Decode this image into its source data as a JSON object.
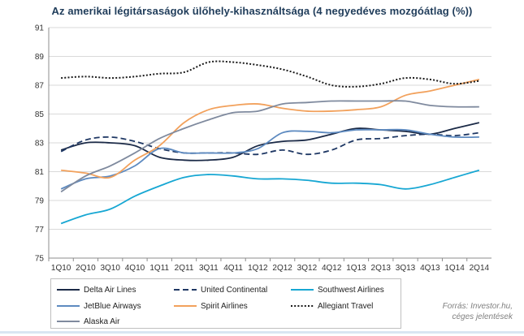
{
  "chart_data": {
    "type": "line",
    "title": "Az amerikai légitársaságok ülőhely-kihasználtsága (4 negyedéves mozgóátlag (%))",
    "categories": [
      "1Q10",
      "2Q10",
      "3Q10",
      "4Q10",
      "1Q11",
      "2Q11",
      "3Q11",
      "4Q11",
      "1Q12",
      "2Q12",
      "3Q12",
      "4Q12",
      "1Q13",
      "2Q13",
      "3Q13",
      "4Q13",
      "1Q14",
      "2Q14"
    ],
    "ylim": [
      75,
      91
    ],
    "yticks": [
      "75",
      "77",
      "79",
      "81",
      "83",
      "85",
      "87",
      "89",
      "91"
    ],
    "grid": "horizontal",
    "legend_position": "bottom",
    "series": [
      {
        "name": "Delta Air Lines",
        "color": "#1b2a47",
        "dash": "solid",
        "values": [
          82.5,
          83.0,
          83.0,
          82.8,
          82.0,
          81.8,
          81.8,
          82.0,
          82.8,
          83.1,
          83.2,
          83.6,
          84.0,
          83.9,
          83.8,
          83.6,
          84.0,
          84.4
        ]
      },
      {
        "name": "United Continental",
        "color": "#1f3864",
        "dash": "dashed",
        "values": [
          82.4,
          83.2,
          83.4,
          83.1,
          82.6,
          82.3,
          82.3,
          82.3,
          82.2,
          82.5,
          82.2,
          82.5,
          83.2,
          83.3,
          83.5,
          83.6,
          83.5,
          83.7
        ]
      },
      {
        "name": "Southwest Airlines",
        "color": "#17a7d3",
        "dash": "solid",
        "values": [
          77.4,
          78.0,
          78.4,
          79.3,
          80.0,
          80.6,
          80.8,
          80.7,
          80.5,
          80.5,
          80.4,
          80.2,
          80.2,
          80.1,
          79.8,
          80.1,
          80.6,
          81.1
        ]
      },
      {
        "name": "JetBlue Airways",
        "color": "#5d8ac0",
        "dash": "solid",
        "values": [
          79.8,
          80.5,
          80.7,
          81.4,
          82.6,
          82.3,
          82.3,
          82.3,
          82.6,
          83.7,
          83.8,
          83.7,
          83.9,
          83.9,
          83.9,
          83.6,
          83.4,
          83.4
        ]
      },
      {
        "name": "Spirit Airlines",
        "color": "#f2a15c",
        "dash": "solid",
        "values": [
          81.1,
          80.9,
          80.6,
          81.8,
          82.8,
          84.4,
          85.3,
          85.6,
          85.7,
          85.4,
          85.2,
          85.2,
          85.3,
          85.5,
          86.3,
          86.6,
          87.0,
          87.4
        ]
      },
      {
        "name": "Allegiant Travel",
        "color": "#1a1a1a",
        "dash": "dotted",
        "values": [
          87.5,
          87.6,
          87.5,
          87.6,
          87.8,
          87.9,
          88.6,
          88.6,
          88.4,
          88.1,
          87.6,
          87.0,
          86.9,
          87.1,
          87.5,
          87.4,
          87.1,
          87.3
        ]
      },
      {
        "name": "Alaska Air",
        "color": "#7f8a9e",
        "dash": "solid",
        "values": [
          79.6,
          80.7,
          81.4,
          82.3,
          83.3,
          84.0,
          84.6,
          85.1,
          85.2,
          85.7,
          85.8,
          85.9,
          85.9,
          85.9,
          85.9,
          85.6,
          85.5,
          85.5
        ]
      }
    ],
    "source": [
      "Forrás: Investor.hu,",
      "céges jelentések"
    ]
  }
}
